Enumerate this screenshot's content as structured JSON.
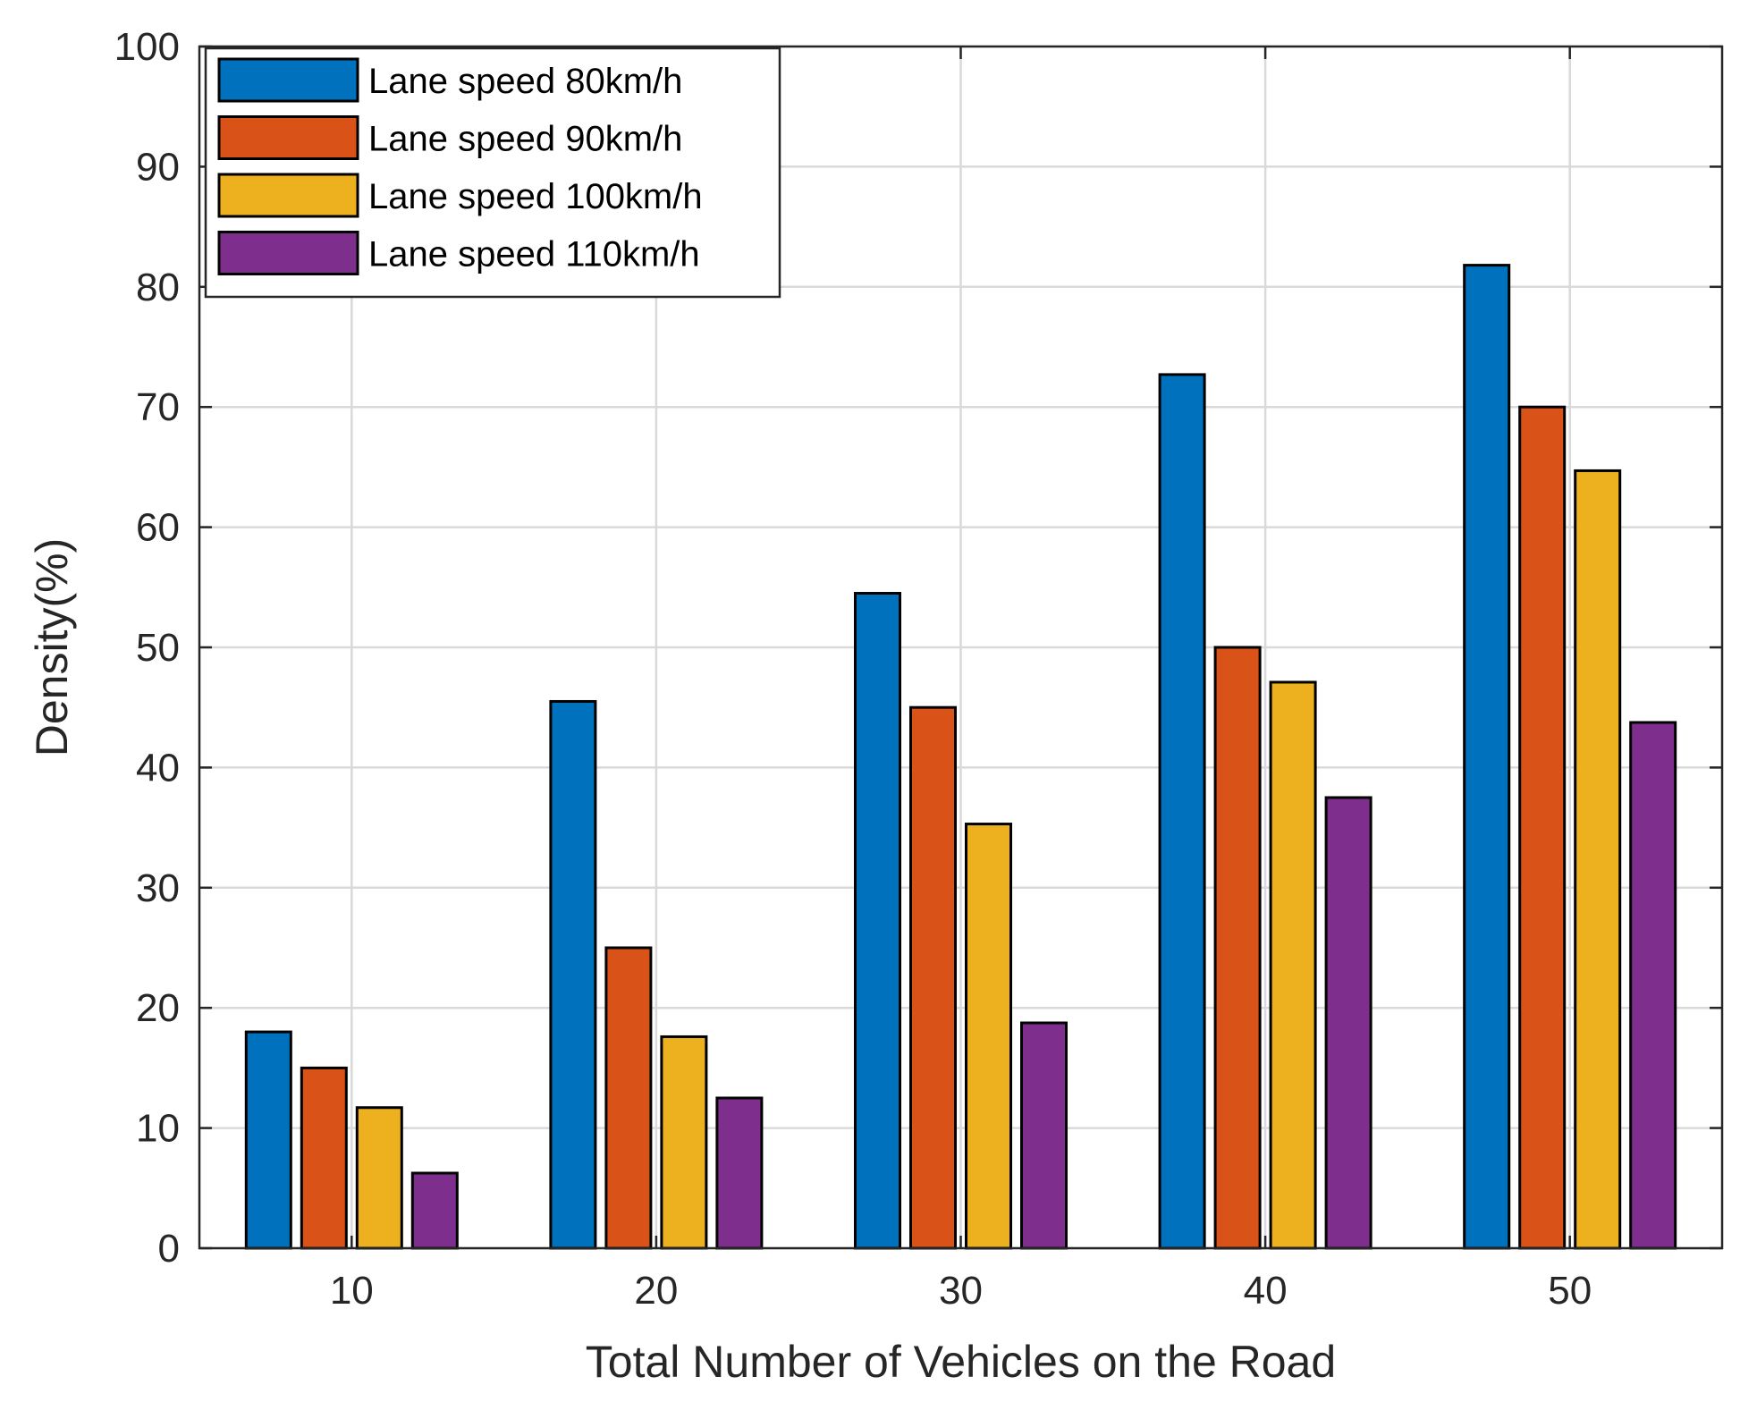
{
  "chart_data": {
    "type": "bar",
    "title": "",
    "xlabel": "Total Number of Vehicles on the Road",
    "ylabel": "Density(%)",
    "categories": [
      "10",
      "20",
      "30",
      "40",
      "50"
    ],
    "ylim": [
      0,
      100
    ],
    "yticks": [
      "0",
      "10",
      "20",
      "30",
      "40",
      "50",
      "60",
      "70",
      "80",
      "90",
      "100"
    ],
    "grid": true,
    "legend_position": "top-left",
    "series": [
      {
        "name": "Lane speed 80km/h",
        "color": "#0072BD",
        "values": [
          18,
          45.5,
          54.5,
          72.7,
          81.8
        ]
      },
      {
        "name": "Lane speed 90km/h",
        "color": "#D95319",
        "values": [
          15,
          25,
          45,
          50,
          70
        ]
      },
      {
        "name": "Lane speed 100km/h",
        "color": "#EDB120",
        "values": [
          11.7,
          17.6,
          35.3,
          47.1,
          64.7
        ]
      },
      {
        "name": "Lane speed 110km/h",
        "color": "#7E2F8E",
        "values": [
          6.25,
          12.5,
          18.75,
          37.5,
          43.75
        ]
      }
    ]
  }
}
